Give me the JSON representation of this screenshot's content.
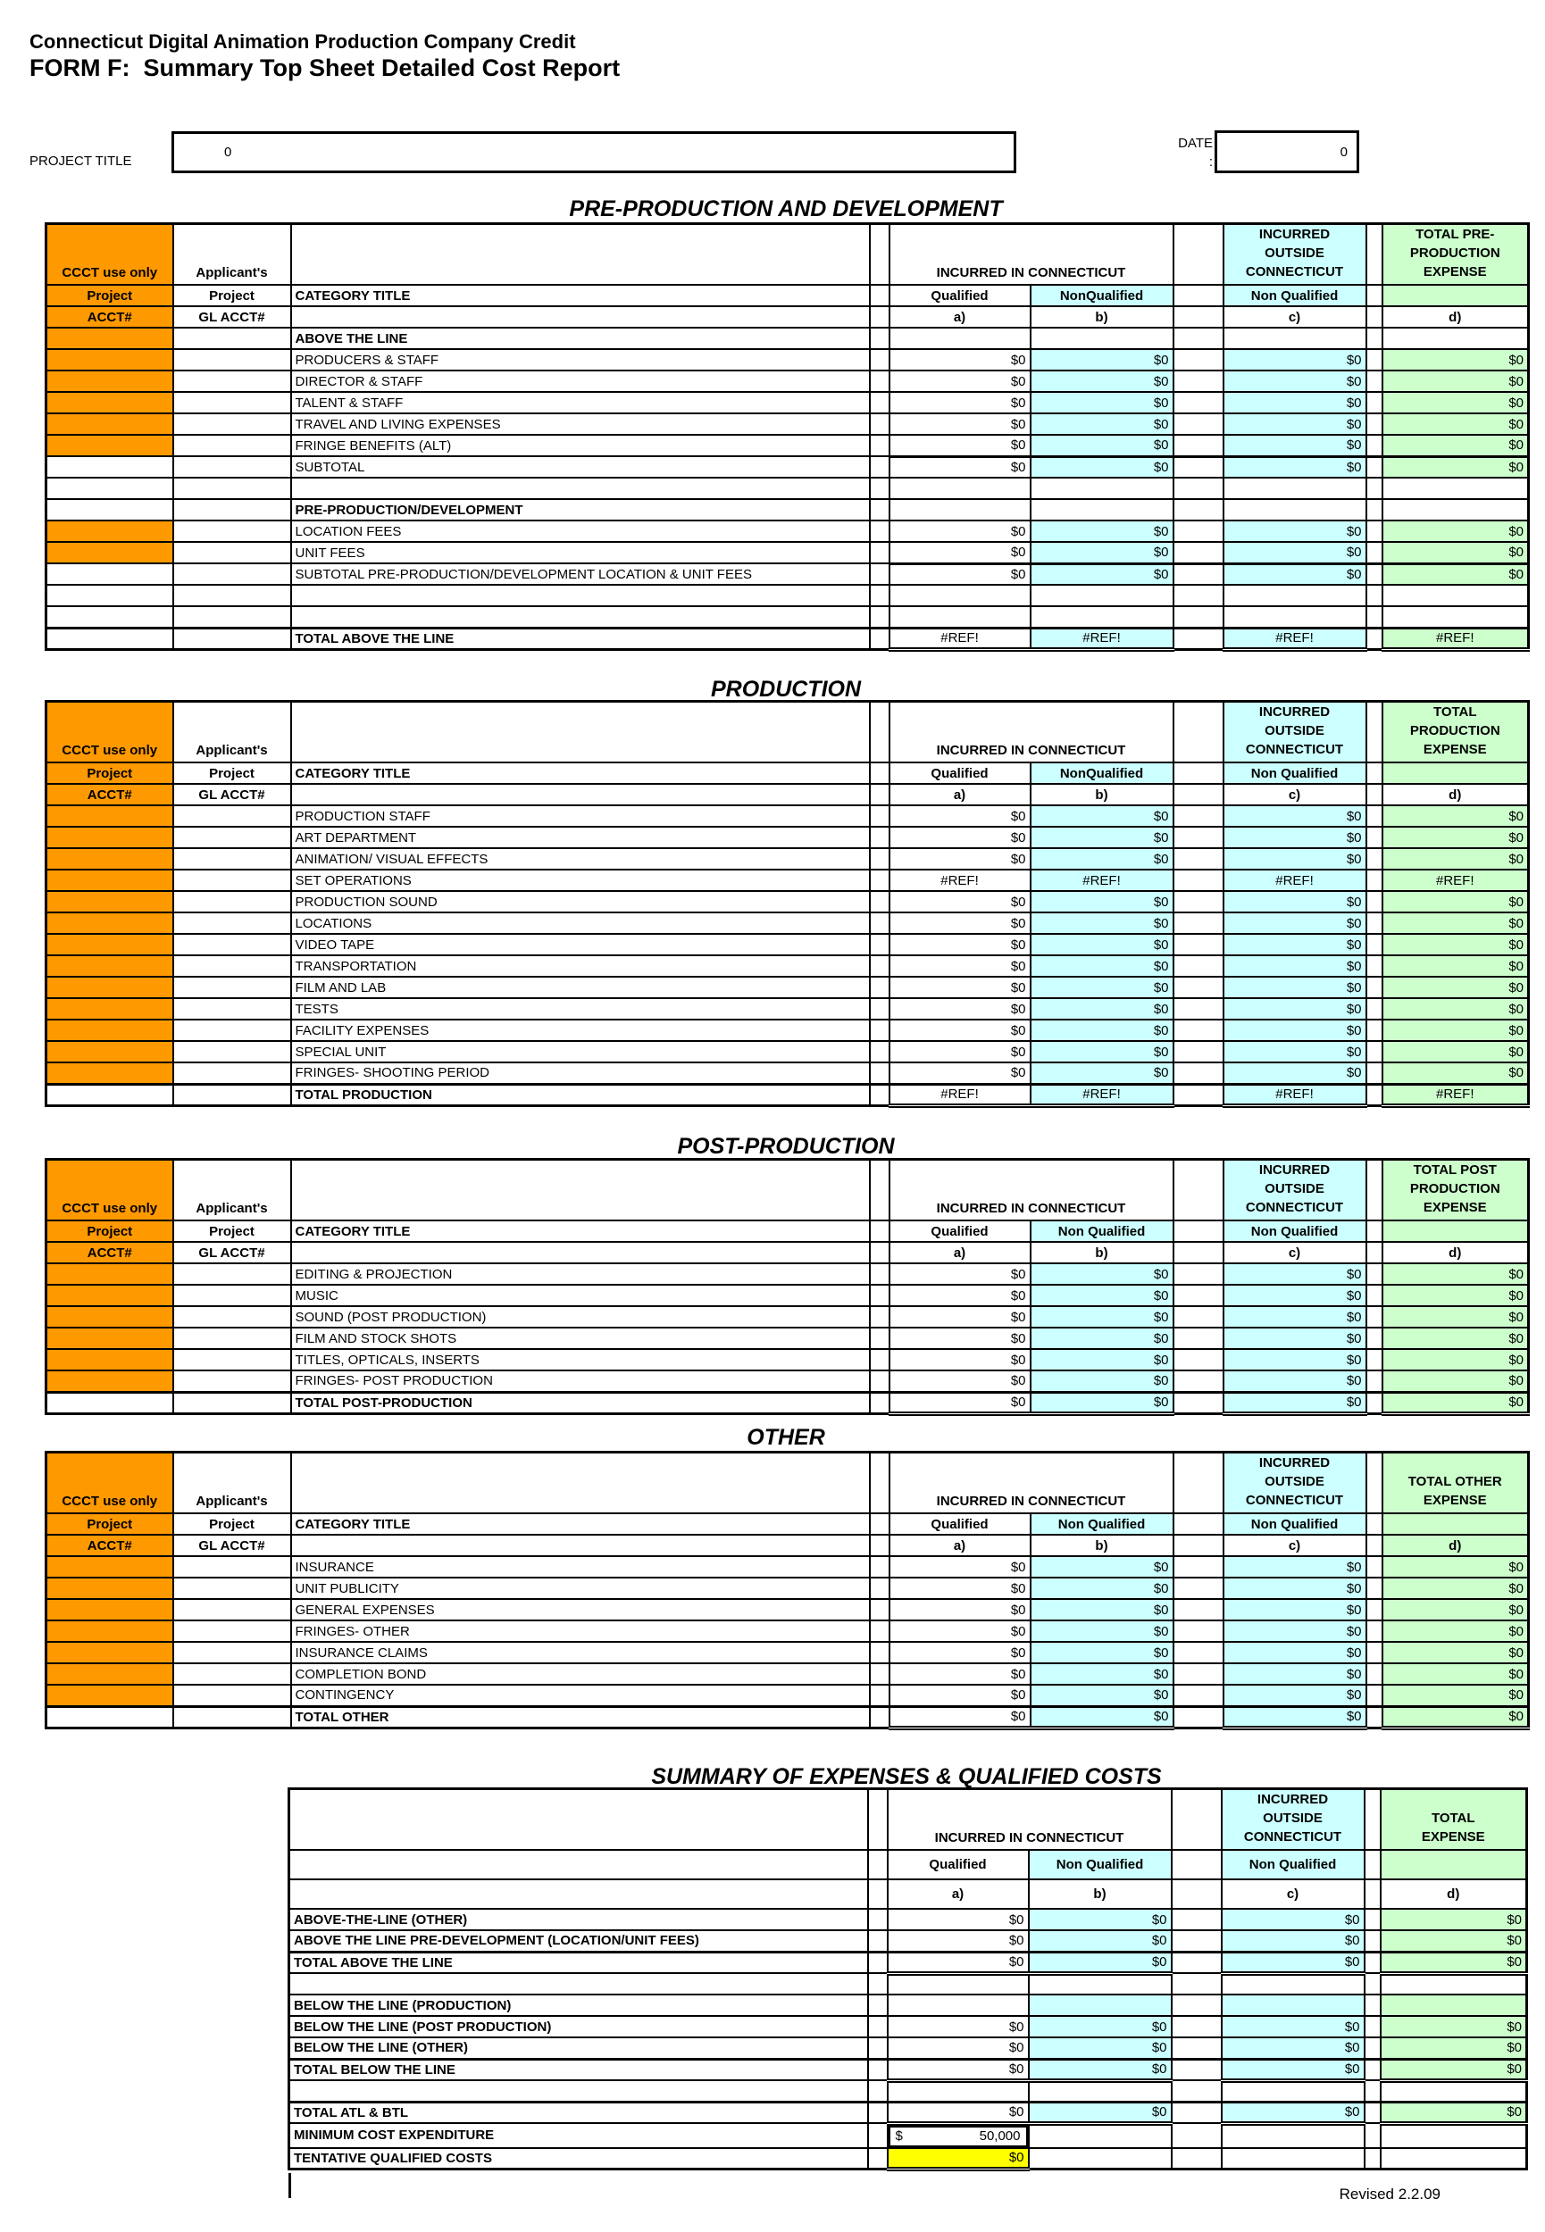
{
  "page": {
    "title_line1": "Connecticut Digital Animation Production Company Credit",
    "title_line2": "FORM F:  Summary Top Sheet Detailed Cost Report",
    "project_title_label": "PROJECT TITLE",
    "project_title_value": "0",
    "date_label": "DATE",
    "date_colon": ":",
    "date_value": "0",
    "revised_note": "Revised 2.2.09"
  },
  "colors": {
    "ccct_orange": "#FF9900",
    "light_cyan": "#CCFFFF",
    "light_green": "#CCFFCC",
    "highlight_yellow": "#FFFF00"
  },
  "header_common": {
    "ccct": "CCCT use only",
    "applicant": "Applicant's",
    "project": "Project",
    "category_title": "CATEGORY TITLE",
    "acct": "ACCT#",
    "gl_acct": "GL ACCT#",
    "incurred_in_ct": "INCURRED IN CONNECTICUT",
    "incurred_outside": "INCURRED\nOUTSIDE\nCONNECTICUT",
    "col_a": "a)",
    "col_b": "b)",
    "col_c": "c)",
    "col_d": "d)"
  },
  "sections": [
    {
      "name": "pre-production",
      "title": "PRE-PRODUCTION AND DEVELOPMENT",
      "summary": false,
      "d_green": false,
      "total_expense_header": "TOTAL PRE-\nPRODUCTION\nEXPENSE",
      "qualified_label": "Qualified",
      "nonqualified_label": "NonQualified",
      "outside_nonqualified_label": "Non Qualified",
      "rows": [
        {
          "type": "group",
          "orange": true,
          "label": "ABOVE THE LINE"
        },
        {
          "type": "data",
          "orange": true,
          "label": "PRODUCERS & STAFF",
          "values": [
            "$0",
            "$0",
            "$0",
            "$0"
          ]
        },
        {
          "type": "data",
          "orange": true,
          "label": "DIRECTOR & STAFF",
          "values": [
            "$0",
            "$0",
            "$0",
            "$0"
          ]
        },
        {
          "type": "data",
          "orange": true,
          "label": "TALENT & STAFF",
          "values": [
            "$0",
            "$0",
            "$0",
            "$0"
          ]
        },
        {
          "type": "data",
          "orange": true,
          "label": "TRAVEL AND LIVING EXPENSES",
          "values": [
            "$0",
            "$0",
            "$0",
            "$0"
          ]
        },
        {
          "type": "data",
          "orange": true,
          "label": "FRINGE BENEFITS (ALT)",
          "values": [
            "$0",
            "$0",
            "$0",
            "$0"
          ]
        },
        {
          "type": "subtotal",
          "orange": false,
          "label": "SUBTOTAL",
          "values": [
            "$0",
            "$0",
            "$0",
            "$0"
          ]
        },
        {
          "type": "empty",
          "orange": false,
          "label": ""
        },
        {
          "type": "group",
          "orange": false,
          "label": "PRE-PRODUCTION/DEVELOPMENT"
        },
        {
          "type": "data",
          "orange": true,
          "label": "LOCATION FEES",
          "values": [
            "$0",
            "$0",
            "$0",
            "$0"
          ]
        },
        {
          "type": "data",
          "orange": true,
          "label": "UNIT FEES",
          "values": [
            "$0",
            "$0",
            "$0",
            "$0"
          ]
        },
        {
          "type": "subtotal",
          "orange": false,
          "label": "SUBTOTAL PRE-PRODUCTION/DEVELOPMENT LOCATION & UNIT FEES",
          "values": [
            "$0",
            "$0",
            "$0",
            "$0"
          ]
        },
        {
          "type": "empty",
          "orange": false,
          "label": ""
        },
        {
          "type": "empty",
          "orange": false,
          "label": ""
        },
        {
          "type": "total",
          "orange": false,
          "label": "TOTAL ABOVE THE LINE",
          "values": [
            "#REF!",
            "#REF!",
            "#REF!",
            "#REF!"
          ]
        }
      ]
    },
    {
      "name": "production",
      "title": "PRODUCTION",
      "summary": false,
      "d_green": false,
      "total_expense_header": "TOTAL\nPRODUCTION\nEXPENSE",
      "qualified_label": "Qualified",
      "nonqualified_label": "NonQualified",
      "outside_nonqualified_label": "Non Qualified",
      "rows": [
        {
          "type": "data",
          "orange": true,
          "label": "PRODUCTION STAFF",
          "values": [
            "$0",
            "$0",
            "$0",
            "$0"
          ]
        },
        {
          "type": "data",
          "orange": true,
          "label": "ART DEPARTMENT",
          "values": [
            "$0",
            "$0",
            "$0",
            "$0"
          ]
        },
        {
          "type": "data",
          "orange": true,
          "label": "ANIMATION/ VISUAL EFFECTS",
          "values": [
            "$0",
            "$0",
            "$0",
            "$0"
          ]
        },
        {
          "type": "data",
          "orange": true,
          "label": "SET OPERATIONS",
          "values": [
            "#REF!",
            "#REF!",
            "#REF!",
            "#REF!"
          ]
        },
        {
          "type": "data",
          "orange": true,
          "label": "PRODUCTION SOUND",
          "values": [
            "$0",
            "$0",
            "$0",
            "$0"
          ]
        },
        {
          "type": "data",
          "orange": true,
          "label": "LOCATIONS",
          "values": [
            "$0",
            "$0",
            "$0",
            "$0"
          ]
        },
        {
          "type": "data",
          "orange": true,
          "label": "VIDEO TAPE",
          "values": [
            "$0",
            "$0",
            "$0",
            "$0"
          ]
        },
        {
          "type": "data",
          "orange": true,
          "label": "TRANSPORTATION",
          "values": [
            "$0",
            "$0",
            "$0",
            "$0"
          ]
        },
        {
          "type": "data",
          "orange": true,
          "label": "FILM AND LAB",
          "values": [
            "$0",
            "$0",
            "$0",
            "$0"
          ]
        },
        {
          "type": "data",
          "orange": true,
          "label": "TESTS",
          "values": [
            "$0",
            "$0",
            "$0",
            "$0"
          ]
        },
        {
          "type": "data",
          "orange": true,
          "label": "FACILITY EXPENSES",
          "values": [
            "$0",
            "$0",
            "$0",
            "$0"
          ]
        },
        {
          "type": "data",
          "orange": true,
          "label": "SPECIAL UNIT",
          "values": [
            "$0",
            "$0",
            "$0",
            "$0"
          ]
        },
        {
          "type": "data",
          "orange": true,
          "label": "FRINGES- SHOOTING PERIOD",
          "values": [
            "$0",
            "$0",
            "$0",
            "$0"
          ]
        },
        {
          "type": "total",
          "orange": false,
          "label": "TOTAL PRODUCTION",
          "values": [
            "#REF!",
            "#REF!",
            "#REF!",
            "#REF!"
          ]
        }
      ]
    },
    {
      "name": "post-production",
      "title": "POST-PRODUCTION",
      "summary": false,
      "d_green": false,
      "total_expense_header": "TOTAL POST\nPRODUCTION\nEXPENSE",
      "qualified_label": "Qualified",
      "nonqualified_label": "Non Qualified",
      "outside_nonqualified_label": "Non Qualified",
      "rows": [
        {
          "type": "data",
          "orange": true,
          "label": "EDITING & PROJECTION",
          "values": [
            "$0",
            "$0",
            "$0",
            "$0"
          ]
        },
        {
          "type": "data",
          "orange": true,
          "label": "MUSIC",
          "values": [
            "$0",
            "$0",
            "$0",
            "$0"
          ]
        },
        {
          "type": "data",
          "orange": true,
          "label": "SOUND (POST PRODUCTION)",
          "values": [
            "$0",
            "$0",
            "$0",
            "$0"
          ]
        },
        {
          "type": "data",
          "orange": true,
          "label": "FILM AND STOCK SHOTS",
          "values": [
            "$0",
            "$0",
            "$0",
            "$0"
          ]
        },
        {
          "type": "data",
          "orange": true,
          "label": "TITLES, OPTICALS, INSERTS",
          "values": [
            "$0",
            "$0",
            "$0",
            "$0"
          ]
        },
        {
          "type": "data",
          "orange": true,
          "label": "FRINGES- POST PRODUCTION",
          "values": [
            "$0",
            "$0",
            "$0",
            "$0"
          ]
        },
        {
          "type": "total",
          "orange": false,
          "label": "TOTAL POST-PRODUCTION",
          "values": [
            "$0",
            "$0",
            "$0",
            "$0"
          ]
        }
      ]
    },
    {
      "name": "other",
      "title": "OTHER",
      "summary": false,
      "d_green": true,
      "total_expense_header": "TOTAL OTHER\nEXPENSE",
      "qualified_label": "Qualified",
      "nonqualified_label": "Non Qualified",
      "outside_nonqualified_label": "Non Qualified",
      "rows": [
        {
          "type": "data",
          "orange": true,
          "label": "INSURANCE",
          "values": [
            "$0",
            "$0",
            "$0",
            "$0"
          ]
        },
        {
          "type": "data",
          "orange": true,
          "label": "UNIT PUBLICITY",
          "values": [
            "$0",
            "$0",
            "$0",
            "$0"
          ]
        },
        {
          "type": "data",
          "orange": true,
          "label": "GENERAL EXPENSES",
          "values": [
            "$0",
            "$0",
            "$0",
            "$0"
          ]
        },
        {
          "type": "data",
          "orange": true,
          "label": "FRINGES- OTHER",
          "values": [
            "$0",
            "$0",
            "$0",
            "$0"
          ]
        },
        {
          "type": "data",
          "orange": true,
          "label": "INSURANCE CLAIMS",
          "values": [
            "$0",
            "$0",
            "$0",
            "$0"
          ]
        },
        {
          "type": "data",
          "orange": true,
          "label": "COMPLETION BOND",
          "values": [
            "$0",
            "$0",
            "$0",
            "$0"
          ]
        },
        {
          "type": "data",
          "orange": true,
          "label": "CONTINGENCY",
          "values": [
            "$0",
            "$0",
            "$0",
            "$0"
          ]
        },
        {
          "type": "total",
          "orange": false,
          "label": "TOTAL OTHER",
          "values": [
            "$0",
            "$0",
            "$0",
            "$0"
          ]
        }
      ]
    },
    {
      "name": "summary",
      "title": "SUMMARY OF EXPENSES & QUALIFIED COSTS",
      "summary": true,
      "d_green": false,
      "total_expense_header": "TOTAL\nEXPENSE",
      "qualified_label": "Qualified",
      "nonqualified_label": "Non Qualified",
      "outside_nonqualified_label": "Non Qualified",
      "rows": [
        {
          "type": "databold",
          "label": "ABOVE-THE-LINE (OTHER)",
          "values": [
            "$0",
            "$0",
            "$0",
            "$0"
          ]
        },
        {
          "type": "databold",
          "label": "ABOVE THE LINE PRE-DEVELOPMENT (LOCATION/UNIT FEES)",
          "values": [
            "$0",
            "$0",
            "$0",
            "$0"
          ]
        },
        {
          "type": "total",
          "label": "TOTAL ABOVE THE LINE",
          "values": [
            "$0",
            "$0",
            "$0",
            "$0"
          ]
        },
        {
          "type": "empty",
          "label": ""
        },
        {
          "type": "coloredempty",
          "label": "BELOW THE LINE (PRODUCTION)"
        },
        {
          "type": "databold",
          "label": "BELOW THE LINE (POST PRODUCTION)",
          "values": [
            "$0",
            "$0",
            "$0",
            "$0"
          ]
        },
        {
          "type": "databold",
          "label": "BELOW THE LINE (OTHER)",
          "values": [
            "$0",
            "$0",
            "$0",
            "$0"
          ]
        },
        {
          "type": "total",
          "label": "TOTAL BELOW THE LINE",
          "values": [
            "$0",
            "$0",
            "$0",
            "$0"
          ]
        },
        {
          "type": "empty",
          "label": ""
        },
        {
          "type": "total",
          "label": "TOTAL ATL & BTL",
          "values": [
            "$0",
            "$0",
            "$0",
            "$0"
          ]
        },
        {
          "type": "min",
          "label": "MINIMUM COST EXPENDITURE",
          "values": {
            "currency": "$",
            "amount": "50,000"
          }
        },
        {
          "type": "tentative",
          "label": "TENTATIVE QUALIFIED COSTS",
          "values": [
            "$0"
          ]
        }
      ]
    }
  ]
}
